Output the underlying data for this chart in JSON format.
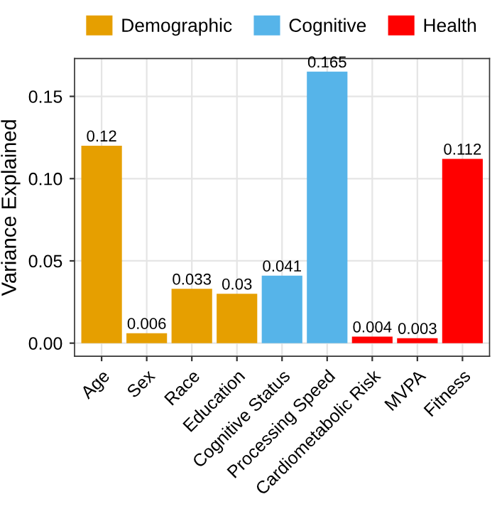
{
  "chart_data": {
    "type": "bar",
    "ylabel": "Variance Explained",
    "categories": [
      "Age",
      "Sex",
      "Race",
      "Education",
      "Cognitive Status",
      "Processing Speed",
      "Cardiometabolic Risk",
      "MVPA",
      "Fitness"
    ],
    "series": [
      {
        "name": "Demographic",
        "color": "#e69f00",
        "values": [
          0.12,
          0.006,
          0.033,
          0.03,
          null,
          null,
          null,
          null,
          null
        ]
      },
      {
        "name": "Cognitive",
        "color": "#56b4e9",
        "values": [
          null,
          null,
          null,
          null,
          0.041,
          0.165,
          null,
          null,
          null
        ]
      },
      {
        "name": "Health",
        "color": "#ff0000",
        "values": [
          null,
          null,
          null,
          null,
          null,
          null,
          0.004,
          0.003,
          0.112
        ]
      }
    ],
    "ylim": [
      -0.008,
      0.173
    ],
    "yticks": [
      {
        "value": 0,
        "label": "0.00"
      },
      {
        "value": 0.05,
        "label": "0.05"
      },
      {
        "value": 0.1,
        "label": "0.10"
      },
      {
        "value": 0.15,
        "label": "0.15"
      }
    ],
    "grid": true,
    "legend": "top",
    "data_labels": true
  }
}
